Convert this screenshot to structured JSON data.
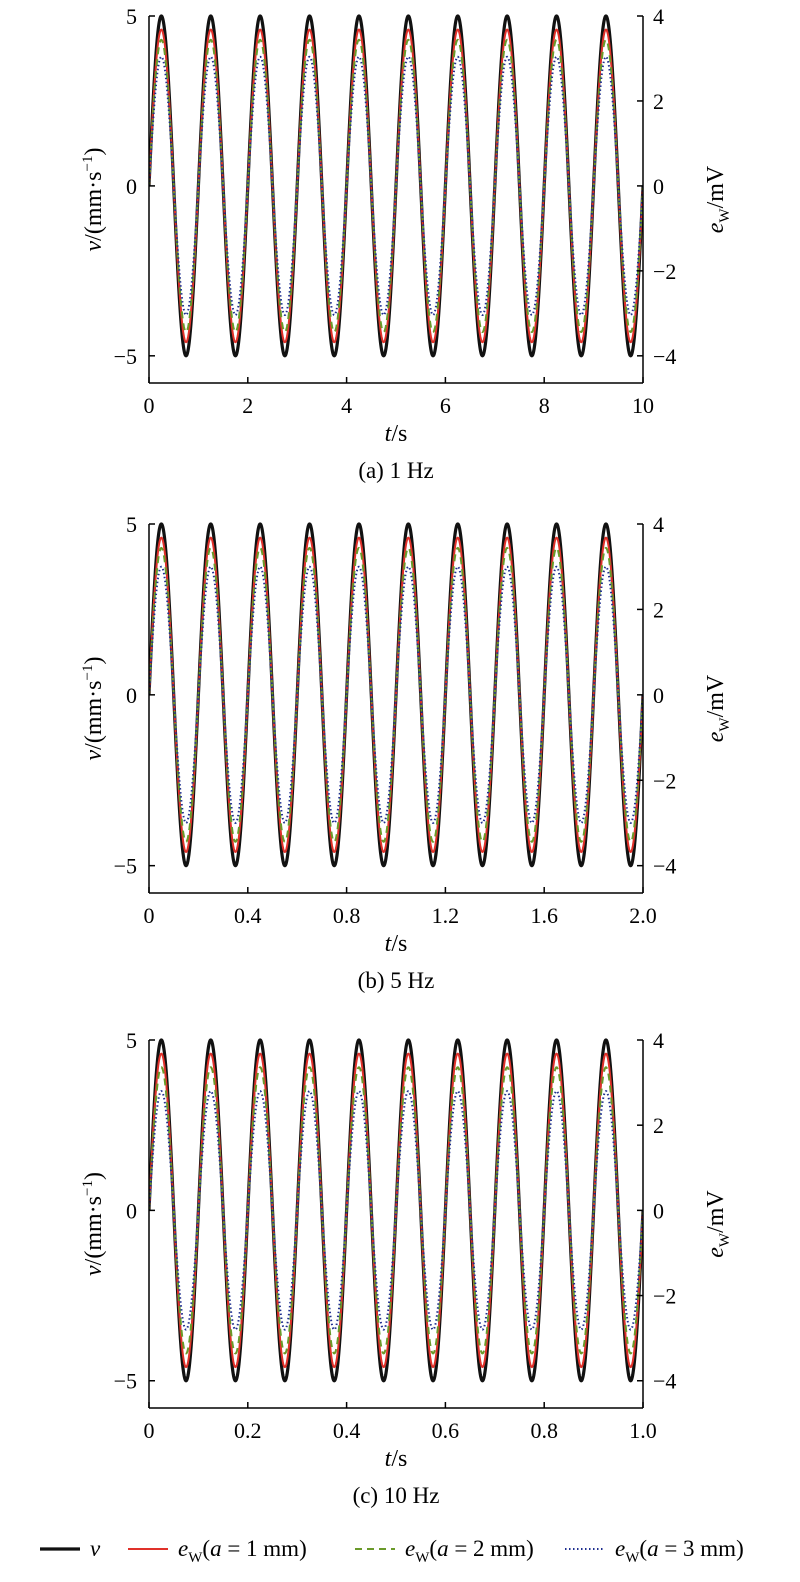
{
  "chart_data": [
    {
      "type": "line",
      "caption": "(a) 1 Hz",
      "xlabel_italic": "t",
      "xlabel_unit": "/s",
      "ylabel_left_italic": "v",
      "ylabel_left_unit": "/(mm·s",
      "ylabel_left_sup": "−1",
      "ylabel_left_close": ")",
      "ylabel_right_italic": "e",
      "ylabel_right_sub": "W",
      "ylabel_right_unit": "/mV",
      "xlim": [
        0,
        10
      ],
      "xticks": [
        0,
        2,
        4,
        6,
        8,
        10
      ],
      "xtick_labels": [
        "0",
        "2",
        "4",
        "6",
        "8",
        "10"
      ],
      "ylim_left": [
        -5.8,
        5
      ],
      "yticks_left": [
        -5,
        0,
        5
      ],
      "ytick_labels_left": [
        "−5",
        "0",
        "5"
      ],
      "ylim_right": [
        -4.64,
        4
      ],
      "yticks_right": [
        -4,
        -2,
        0,
        2,
        4
      ],
      "ytick_labels_right": [
        "−4",
        "−2",
        "0",
        "2",
        "4"
      ],
      "frequency_hz": 1,
      "series": [
        {
          "amplitude_left_units": 5.0
        },
        {
          "amplitude_left_units": 4.6
        },
        {
          "amplitude_left_units": 4.3
        },
        {
          "amplitude_left_units": 3.8
        }
      ]
    },
    {
      "type": "line",
      "caption": "(b) 5 Hz",
      "xlabel_italic": "t",
      "xlabel_unit": "/s",
      "ylabel_left_italic": "v",
      "ylabel_left_unit": "/(mm·s",
      "ylabel_left_sup": "−1",
      "ylabel_left_close": ")",
      "ylabel_right_italic": "e",
      "ylabel_right_sub": "W",
      "ylabel_right_unit": "/mV",
      "xlim": [
        0,
        2
      ],
      "xticks": [
        0,
        0.4,
        0.8,
        1.2,
        1.6,
        2.0
      ],
      "xtick_labels": [
        "0",
        "0.4",
        "0.8",
        "1.2",
        "1.6",
        "2.0"
      ],
      "ylim_left": [
        -5.8,
        5
      ],
      "yticks_left": [
        -5,
        0,
        5
      ],
      "ytick_labels_left": [
        "−5",
        "0",
        "5"
      ],
      "ylim_right": [
        -4.64,
        4
      ],
      "yticks_right": [
        -4,
        -2,
        0,
        2,
        4
      ],
      "ytick_labels_right": [
        "−4",
        "−2",
        "0",
        "2",
        "4"
      ],
      "frequency_hz": 5,
      "series": [
        {
          "amplitude_left_units": 5.0
        },
        {
          "amplitude_left_units": 4.6
        },
        {
          "amplitude_left_units": 4.3
        },
        {
          "amplitude_left_units": 3.75
        }
      ]
    },
    {
      "type": "line",
      "caption": "(c) 10 Hz",
      "xlabel_italic": "t",
      "xlabel_unit": "/s",
      "ylabel_left_italic": "v",
      "ylabel_left_unit": "/(mm·s",
      "ylabel_left_sup": "−1",
      "ylabel_left_close": ")",
      "ylabel_right_italic": "e",
      "ylabel_right_sub": "W",
      "ylabel_right_unit": "/mV",
      "xlim": [
        0,
        1
      ],
      "xticks": [
        0,
        0.2,
        0.4,
        0.6,
        0.8,
        1.0
      ],
      "xtick_labels": [
        "0",
        "0.2",
        "0.4",
        "0.6",
        "0.8",
        "1.0"
      ],
      "ylim_left": [
        -5.8,
        5
      ],
      "yticks_left": [
        -5,
        0,
        5
      ],
      "ytick_labels_left": [
        "−5",
        "0",
        "5"
      ],
      "ylim_right": [
        -4.64,
        4
      ],
      "yticks_right": [
        -4,
        -2,
        0,
        2,
        4
      ],
      "ytick_labels_right": [
        "−4",
        "−2",
        "0",
        "2",
        "4"
      ],
      "frequency_hz": 10,
      "series": [
        {
          "amplitude_left_units": 5.0
        },
        {
          "amplitude_left_units": 4.6
        },
        {
          "amplitude_left_units": 4.2
        },
        {
          "amplitude_left_units": 3.5
        }
      ]
    }
  ],
  "series_styles": [
    {
      "color": "#111111",
      "dash": "",
      "width": 3.2
    },
    {
      "color": "#e0312a",
      "dash": "",
      "width": 2.0
    },
    {
      "color": "#6a9a2a",
      "dash": "7,5",
      "width": 2.0
    },
    {
      "color": "#1f2f8f",
      "dash": "1.5,2.5",
      "width": 2.0
    }
  ],
  "legend": [
    {
      "italic": "v",
      "sub": "",
      "rest": ""
    },
    {
      "italic": "e",
      "sub": "W",
      "rest_open": "(",
      "rest_italic": "a",
      "rest": " = 1 mm)"
    },
    {
      "italic": "e",
      "sub": "W",
      "rest_open": "(",
      "rest_italic": "a",
      "rest": " = 2 mm)"
    },
    {
      "italic": "e",
      "sub": "W",
      "rest_open": "(",
      "rest_italic": "a",
      "rest": " = 3 mm)"
    }
  ]
}
